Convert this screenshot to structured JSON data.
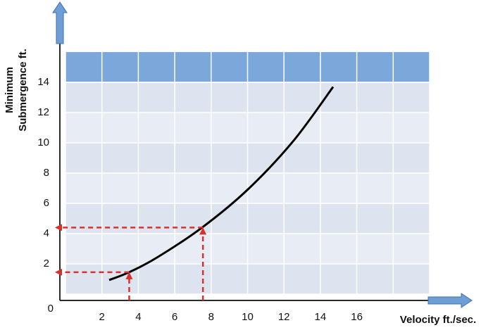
{
  "chart_data": {
    "type": "line",
    "x_label": "Velocity ft./sec.",
    "y_label": [
      "Minimum",
      "Submergence ft."
    ],
    "x": [
      2.4,
      3.5,
      5,
      7.5,
      10,
      12.5,
      14.7
    ],
    "series": [
      {
        "color": "#000000",
        "values": [
          0.93,
          1.45,
          2.4,
          4.4,
          6.9,
          10.1,
          13.7
        ]
      }
    ],
    "guides": [
      {
        "x": 7.55,
        "y": 4.4,
        "color": "#d9302a"
      },
      {
        "x": 3.5,
        "y": 1.45,
        "color": "#d9302a"
      }
    ],
    "xlim": [
      0,
      20
    ],
    "ylim": [
      0,
      16
    ],
    "xticks": [
      2,
      4,
      6,
      8,
      10,
      12,
      14,
      16
    ],
    "yticks": [
      0,
      2,
      4,
      6,
      8,
      10,
      12,
      14
    ],
    "grid": true
  }
}
